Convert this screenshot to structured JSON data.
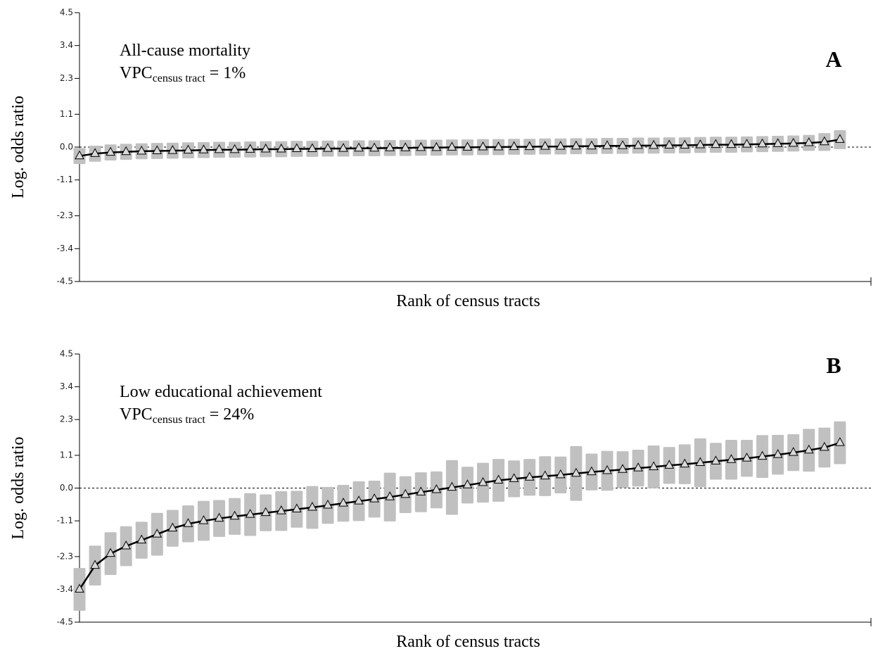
{
  "chart_data": [
    {
      "type": "scatter",
      "annotation": "All-cause mortality",
      "vpc": {
        "main": "VPC",
        "sub": "census tract",
        "rest": "= 1%"
      },
      "panel_label": "A",
      "xlabel": "Rank of census tracts",
      "ylabel": "Log. odds ratio",
      "x": [
        1,
        2,
        3,
        4,
        5,
        6,
        7,
        8,
        9,
        10,
        11,
        12,
        13,
        14,
        15,
        16,
        17,
        18,
        19,
        20,
        21,
        22,
        23,
        24,
        25,
        26,
        27,
        28,
        29,
        30,
        31,
        32,
        33,
        34,
        35,
        36,
        37,
        38,
        39,
        40,
        41,
        42,
        43,
        44,
        45,
        46,
        47,
        48,
        49,
        50
      ],
      "values": [
        -0.3,
        -0.22,
        -0.18,
        -0.16,
        -0.14,
        -0.13,
        -0.12,
        -0.11,
        -0.1,
        -0.09,
        -0.09,
        -0.08,
        -0.07,
        -0.07,
        -0.06,
        -0.06,
        -0.05,
        -0.05,
        -0.04,
        -0.04,
        -0.03,
        -0.03,
        -0.02,
        -0.02,
        -0.01,
        -0.01,
        0,
        0,
        0.01,
        0.01,
        0.02,
        0.02,
        0.03,
        0.03,
        0.04,
        0.04,
        0.05,
        0.05,
        0.06,
        0.06,
        0.07,
        0.08,
        0.08,
        0.09,
        0.1,
        0.11,
        0.12,
        0.14,
        0.17,
        0.25
      ],
      "errors": [
        0.25,
        0.25,
        0.25,
        0.25,
        0.25,
        0.25,
        0.25,
        0.25,
        0.25,
        0.25,
        0.25,
        0.25,
        0.25,
        0.25,
        0.25,
        0.25,
        0.25,
        0.25,
        0.25,
        0.25,
        0.25,
        0.25,
        0.25,
        0.25,
        0.25,
        0.25,
        0.25,
        0.25,
        0.25,
        0.25,
        0.25,
        0.25,
        0.25,
        0.25,
        0.25,
        0.25,
        0.25,
        0.25,
        0.25,
        0.25,
        0.25,
        0.25,
        0.25,
        0.25,
        0.25,
        0.25,
        0.25,
        0.25,
        0.28,
        0.3
      ],
      "color": "#d9d9d9",
      "line_color": "#000000",
      "error_color": "#c0c0c0",
      "reference_line": 0,
      "xlim": [
        1,
        52
      ],
      "ylim": [
        -4.5,
        4.5
      ],
      "yticks": [
        -4.5,
        -3.4,
        -2.3,
        -1.1,
        {
          "value": 0,
          "label": "0.0"
        },
        1.1,
        2.3,
        3.4,
        4.5
      ]
    },
    {
      "type": "scatter",
      "annotation": "Low educational achievement",
      "vpc": {
        "main": "VPC",
        "sub": "census tract",
        "rest": "= 24%"
      },
      "panel_label": "B",
      "xlabel": "Rank of census tracts",
      "ylabel": "Log. odds ratio",
      "x": [
        1,
        2,
        3,
        4,
        5,
        6,
        7,
        8,
        9,
        10,
        11,
        12,
        13,
        14,
        15,
        16,
        17,
        18,
        19,
        20,
        21,
        22,
        23,
        24,
        25,
        26,
        27,
        28,
        29,
        30,
        31,
        32,
        33,
        34,
        35,
        36,
        37,
        38,
        39,
        40,
        41,
        42,
        43,
        44,
        45,
        46,
        47,
        48,
        49,
        50
      ],
      "values": [
        -3.4,
        -2.6,
        -2.2,
        -1.95,
        -1.75,
        -1.55,
        -1.35,
        -1.2,
        -1.1,
        -1.02,
        -0.95,
        -0.89,
        -0.83,
        -0.77,
        -0.71,
        -0.65,
        -0.58,
        -0.51,
        -0.44,
        -0.37,
        -0.3,
        -0.22,
        -0.14,
        -0.06,
        0.02,
        0.1,
        0.18,
        0.26,
        0.31,
        0.36,
        0.4,
        0.44,
        0.49,
        0.54,
        0.58,
        0.62,
        0.67,
        0.71,
        0.76,
        0.8,
        0.85,
        0.9,
        0.95,
        1.0,
        1.06,
        1.12,
        1.19,
        1.27,
        1.36,
        1.52
      ],
      "errors": [
        0.7,
        0.65,
        0.7,
        0.65,
        0.6,
        0.7,
        0.6,
        0.6,
        0.65,
        0.6,
        0.6,
        0.7,
        0.6,
        0.65,
        0.6,
        0.7,
        0.6,
        0.6,
        0.65,
        0.6,
        0.8,
        0.6,
        0.65,
        0.6,
        0.9,
        0.6,
        0.65,
        0.7,
        0.6,
        0.6,
        0.65,
        0.6,
        0.9,
        0.6,
        0.65,
        0.6,
        0.6,
        0.7,
        0.6,
        0.65,
        0.8,
        0.6,
        0.65,
        0.6,
        0.7,
        0.65,
        0.6,
        0.7,
        0.65,
        0.7
      ],
      "color": "#d9d9d9",
      "line_color": "#000000",
      "error_color": "#c0c0c0",
      "reference_line": 0,
      "xlim": [
        1,
        52
      ],
      "ylim": [
        -4.5,
        4.5
      ],
      "yticks": [
        -4.5,
        -3.4,
        -2.3,
        -1.1,
        {
          "value": 0,
          "label": "0.0"
        },
        1.1,
        2.3,
        3.4,
        4.5
      ]
    }
  ]
}
